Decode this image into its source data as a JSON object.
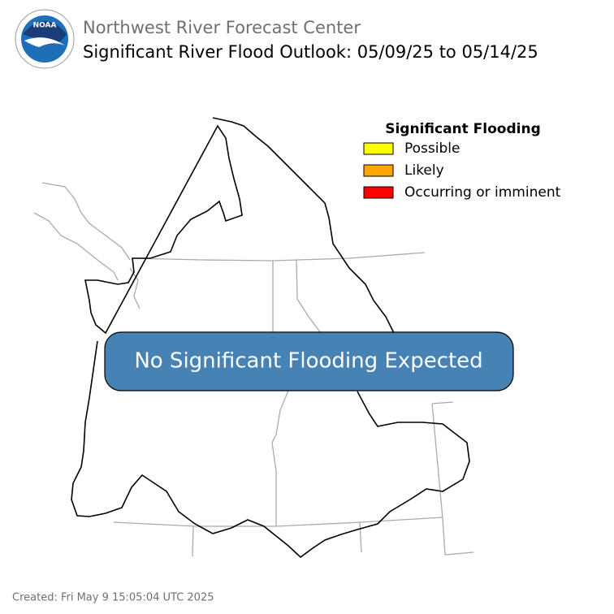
{
  "header": {
    "agency": "Northwest River Forecast Center",
    "title": "Significant River Flood Outlook: 05/09/25 to 05/14/25"
  },
  "logo": {
    "text": "NOAA"
  },
  "legend": {
    "title": "Significant Flooding",
    "items": [
      {
        "label": "Possible",
        "color": "#ffff00"
      },
      {
        "label": "Likely",
        "color": "#ffa500"
      },
      {
        "label": "Occurring or imminent",
        "color": "#ff0000"
      }
    ]
  },
  "banner": {
    "text": "No Significant Flooding Expected"
  },
  "footer": {
    "created": "Created: Fri May 9 15:05:04 UTC 2025"
  }
}
